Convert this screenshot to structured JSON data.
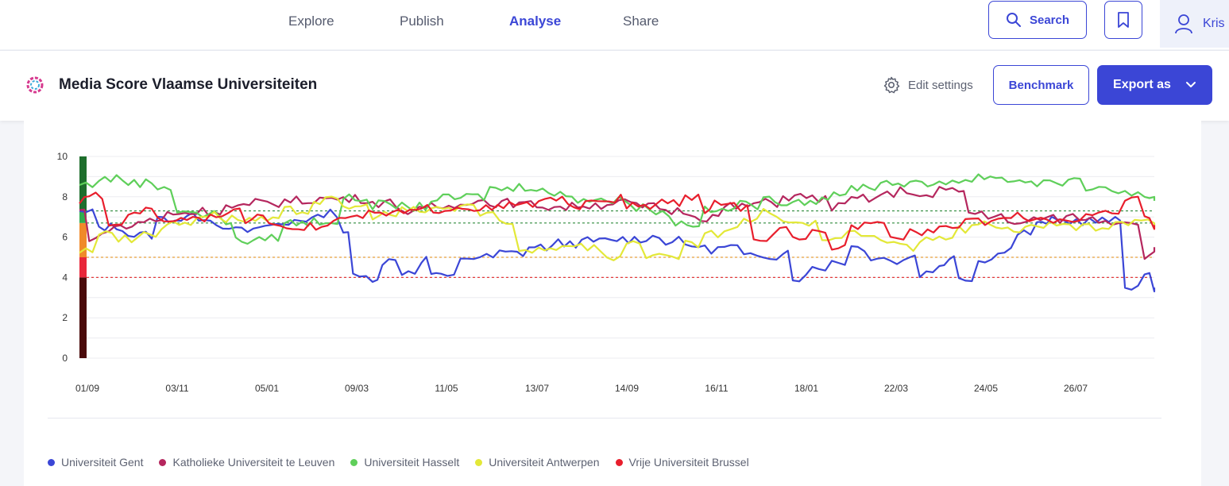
{
  "nav": {
    "items": [
      {
        "label": "Explore",
        "active": false
      },
      {
        "label": "Publish",
        "active": false
      },
      {
        "label": "Analyse",
        "active": true
      },
      {
        "label": "Share",
        "active": false
      }
    ],
    "search_label": "Search",
    "user_name": "Kris"
  },
  "header": {
    "title": "Media Score Vlaamse Universiteiten",
    "edit_settings_label": "Edit settings",
    "benchmark_label": "Benchmark",
    "export_label": "Export as"
  },
  "colors": {
    "accent": "#3b46d6"
  },
  "chart_data": {
    "type": "line",
    "ylim": [
      0,
      10
    ],
    "yticks": [
      0,
      2,
      4,
      6,
      8,
      10
    ],
    "x_tick_labels": [
      "01/09",
      "03/11",
      "05/01",
      "09/03",
      "11/05",
      "13/07",
      "14/09",
      "16/11",
      "18/01",
      "22/03",
      "24/05",
      "26/07"
    ],
    "reference_lines": [
      {
        "value": 7.3,
        "color": "#2e8b3d"
      },
      {
        "value": 6.7,
        "color": "#2e8b3d"
      },
      {
        "value": 5.0,
        "color": "#e8a13c"
      },
      {
        "value": 4.0,
        "color": "#e33b3b"
      }
    ],
    "score_bands": [
      {
        "from": 0,
        "to": 4,
        "color": "#4a0a0a"
      },
      {
        "from": 4,
        "to": 5,
        "color": "#e8273a"
      },
      {
        "from": 5,
        "to": 6.7,
        "color": "#f08a2a"
      },
      {
        "from": 6.7,
        "to": 7.3,
        "color": "#2fae4f"
      },
      {
        "from": 7.3,
        "to": 10,
        "color": "#1e6e2c"
      }
    ],
    "series": [
      {
        "name": "Universiteit Gent",
        "color": "#3b46d6",
        "points": [
          [
            0,
            7.2
          ],
          [
            0.02,
            6.5
          ],
          [
            0.05,
            6.1
          ],
          [
            0.08,
            6.9
          ],
          [
            0.11,
            7.0
          ],
          [
            0.14,
            6.6
          ],
          [
            0.16,
            6.3
          ],
          [
            0.19,
            6.6
          ],
          [
            0.22,
            6.9
          ],
          [
            0.25,
            7.2
          ],
          [
            0.27,
            6.3
          ],
          [
            0.28,
            4.0
          ],
          [
            0.3,
            4.0
          ],
          [
            0.31,
            4.8
          ],
          [
            0.33,
            4.3
          ],
          [
            0.35,
            4.9
          ],
          [
            0.36,
            4.2
          ],
          [
            0.37,
            4.0
          ],
          [
            0.39,
            5.0
          ],
          [
            0.41,
            5.0
          ],
          [
            0.43,
            5.2
          ],
          [
            0.46,
            5.5
          ],
          [
            0.49,
            5.7
          ],
          [
            0.52,
            5.8
          ],
          [
            0.55,
            5.9
          ],
          [
            0.58,
            6.0
          ],
          [
            0.6,
            5.8
          ],
          [
            0.62,
            5.6
          ],
          [
            0.64,
            5.4
          ],
          [
            0.66,
            5.5
          ],
          [
            0.68,
            5.0
          ],
          [
            0.7,
            5.1
          ],
          [
            0.72,
            5.3
          ],
          [
            0.73,
            4.0
          ],
          [
            0.75,
            4.5
          ],
          [
            0.77,
            4.8
          ],
          [
            0.79,
            5.5
          ],
          [
            0.81,
            5.0
          ],
          [
            0.83,
            4.8
          ],
          [
            0.85,
            5.1
          ],
          [
            0.86,
            4.2
          ],
          [
            0.88,
            4.7
          ],
          [
            0.89,
            5.1
          ],
          [
            0.9,
            4.0
          ],
          [
            0.92,
            4.8
          ],
          [
            0.94,
            5.4
          ],
          [
            0.96,
            6.2
          ],
          [
            0.98,
            6.6
          ],
          [
            0.99,
            6.8
          ],
          [
            1.0,
            6.8
          ],
          [
            1.02,
            6.8
          ],
          [
            1.04,
            6.8
          ],
          [
            1.06,
            6.8
          ],
          [
            1.07,
            3.6
          ],
          [
            1.09,
            4.0
          ],
          [
            1.1,
            3.5
          ]
        ]
      },
      {
        "name": "Katholieke Universiteit te Leuven",
        "color": "#b5275e",
        "points": [
          [
            0,
            7.3
          ],
          [
            0.01,
            6.0
          ],
          [
            0.03,
            6.5
          ],
          [
            0.06,
            6.8
          ],
          [
            0.09,
            7.2
          ],
          [
            0.12,
            7.3
          ],
          [
            0.15,
            7.5
          ],
          [
            0.18,
            7.7
          ],
          [
            0.21,
            7.8
          ],
          [
            0.24,
            7.9
          ],
          [
            0.27,
            7.9
          ],
          [
            0.3,
            7.7
          ],
          [
            0.33,
            7.3
          ],
          [
            0.36,
            7.5
          ],
          [
            0.39,
            7.8
          ],
          [
            0.42,
            7.7
          ],
          [
            0.45,
            7.6
          ],
          [
            0.48,
            7.5
          ],
          [
            0.51,
            7.6
          ],
          [
            0.54,
            7.7
          ],
          [
            0.57,
            7.5
          ],
          [
            0.6,
            7.3
          ],
          [
            0.63,
            7.0
          ],
          [
            0.66,
            7.5
          ],
          [
            0.69,
            7.7
          ],
          [
            0.72,
            8.0
          ],
          [
            0.75,
            7.9
          ],
          [
            0.77,
            7.5
          ],
          [
            0.79,
            7.9
          ],
          [
            0.82,
            8.1
          ],
          [
            0.84,
            8.3
          ],
          [
            0.86,
            8.0
          ],
          [
            0.88,
            8.3
          ],
          [
            0.9,
            8.3
          ],
          [
            0.91,
            7.2
          ],
          [
            0.93,
            7.1
          ],
          [
            0.95,
            6.6
          ],
          [
            0.97,
            6.9
          ],
          [
            0.99,
            6.9
          ],
          [
            1.01,
            7.0
          ],
          [
            1.03,
            6.9
          ],
          [
            1.05,
            6.8
          ],
          [
            1.07,
            6.8
          ],
          [
            1.09,
            5.0
          ],
          [
            1.1,
            5.5
          ]
        ]
      },
      {
        "name": "Universiteit Hasselt",
        "color": "#5fcf5a",
        "points": [
          [
            0,
            8.6
          ],
          [
            0.02,
            8.9
          ],
          [
            0.05,
            8.7
          ],
          [
            0.08,
            8.5
          ],
          [
            0.1,
            7.3
          ],
          [
            0.12,
            7.1
          ],
          [
            0.15,
            6.8
          ],
          [
            0.16,
            5.8
          ],
          [
            0.19,
            6.0
          ],
          [
            0.21,
            6.7
          ],
          [
            0.24,
            6.8
          ],
          [
            0.27,
            7.9
          ],
          [
            0.3,
            7.6
          ],
          [
            0.33,
            7.5
          ],
          [
            0.36,
            7.9
          ],
          [
            0.39,
            8.0
          ],
          [
            0.42,
            8.4
          ],
          [
            0.45,
            8.5
          ],
          [
            0.48,
            8.1
          ],
          [
            0.51,
            7.9
          ],
          [
            0.54,
            7.8
          ],
          [
            0.57,
            7.5
          ],
          [
            0.59,
            7.2
          ],
          [
            0.61,
            6.7
          ],
          [
            0.64,
            7.3
          ],
          [
            0.67,
            7.6
          ],
          [
            0.7,
            7.8
          ],
          [
            0.73,
            7.8
          ],
          [
            0.76,
            8.0
          ],
          [
            0.79,
            8.5
          ],
          [
            0.82,
            8.7
          ],
          [
            0.85,
            8.6
          ],
          [
            0.88,
            8.8
          ],
          [
            0.9,
            8.8
          ],
          [
            0.92,
            9.0
          ],
          [
            0.95,
            8.8
          ],
          [
            0.98,
            8.7
          ],
          [
            1.0,
            8.7
          ],
          [
            1.03,
            8.5
          ],
          [
            1.05,
            8.3
          ],
          [
            1.07,
            8.2
          ],
          [
            1.09,
            7.8
          ],
          [
            1.1,
            7.8
          ]
        ]
      },
      {
        "name": "Universiteit Antwerpen",
        "color": "#e3e838",
        "points": [
          [
            0,
            5.3
          ],
          [
            0.02,
            6.3
          ],
          [
            0.04,
            5.9
          ],
          [
            0.06,
            6.2
          ],
          [
            0.09,
            6.7
          ],
          [
            0.12,
            7.1
          ],
          [
            0.15,
            6.9
          ],
          [
            0.18,
            6.8
          ],
          [
            0.21,
            7.3
          ],
          [
            0.24,
            7.8
          ],
          [
            0.27,
            7.5
          ],
          [
            0.3,
            7.1
          ],
          [
            0.33,
            7.3
          ],
          [
            0.36,
            7.4
          ],
          [
            0.39,
            7.6
          ],
          [
            0.41,
            7.1
          ],
          [
            0.43,
            6.6
          ],
          [
            0.45,
            5.3
          ],
          [
            0.47,
            5.5
          ],
          [
            0.5,
            5.7
          ],
          [
            0.52,
            5.5
          ],
          [
            0.54,
            4.9
          ],
          [
            0.56,
            5.8
          ],
          [
            0.58,
            5.1
          ],
          [
            0.6,
            4.9
          ],
          [
            0.62,
            5.6
          ],
          [
            0.64,
            6.1
          ],
          [
            0.66,
            6.3
          ],
          [
            0.68,
            6.8
          ],
          [
            0.7,
            7.2
          ],
          [
            0.72,
            6.8
          ],
          [
            0.74,
            6.6
          ],
          [
            0.76,
            6.0
          ],
          [
            0.78,
            6.1
          ],
          [
            0.8,
            6.2
          ],
          [
            0.82,
            5.8
          ],
          [
            0.84,
            5.5
          ],
          [
            0.86,
            5.8
          ],
          [
            0.88,
            6.0
          ],
          [
            0.9,
            6.4
          ],
          [
            0.92,
            6.6
          ],
          [
            0.95,
            6.4
          ],
          [
            0.98,
            6.6
          ],
          [
            1.0,
            6.7
          ],
          [
            1.02,
            6.5
          ],
          [
            1.04,
            6.3
          ],
          [
            1.06,
            6.6
          ],
          [
            1.08,
            6.9
          ],
          [
            1.1,
            6.6
          ]
        ]
      },
      {
        "name": "Vrije Universiteit Brussel",
        "color": "#e81e2c",
        "points": [
          [
            0,
            7.8
          ],
          [
            0.01,
            8.0
          ],
          [
            0.03,
            6.6
          ],
          [
            0.05,
            7.3
          ],
          [
            0.08,
            6.9
          ],
          [
            0.11,
            7.0
          ],
          [
            0.14,
            7.2
          ],
          [
            0.17,
            6.9
          ],
          [
            0.2,
            6.6
          ],
          [
            0.23,
            6.5
          ],
          [
            0.26,
            6.9
          ],
          [
            0.29,
            7.1
          ],
          [
            0.32,
            7.2
          ],
          [
            0.35,
            7.4
          ],
          [
            0.38,
            7.5
          ],
          [
            0.41,
            7.4
          ],
          [
            0.44,
            7.6
          ],
          [
            0.47,
            7.8
          ],
          [
            0.5,
            7.6
          ],
          [
            0.53,
            7.9
          ],
          [
            0.56,
            7.5
          ],
          [
            0.59,
            7.7
          ],
          [
            0.62,
            7.9
          ],
          [
            0.64,
            7.4
          ],
          [
            0.65,
            7.7
          ],
          [
            0.67,
            7.5
          ],
          [
            0.69,
            5.7
          ],
          [
            0.71,
            6.3
          ],
          [
            0.73,
            5.8
          ],
          [
            0.75,
            6.2
          ],
          [
            0.77,
            5.5
          ],
          [
            0.79,
            6.6
          ],
          [
            0.81,
            6.9
          ],
          [
            0.83,
            6.1
          ],
          [
            0.85,
            6.3
          ],
          [
            0.88,
            6.5
          ],
          [
            0.9,
            6.7
          ],
          [
            0.92,
            6.8
          ],
          [
            0.94,
            7.0
          ],
          [
            0.96,
            7.0
          ],
          [
            0.99,
            6.7
          ],
          [
            1.01,
            6.9
          ],
          [
            1.03,
            7.0
          ],
          [
            1.05,
            7.2
          ],
          [
            1.07,
            7.8
          ],
          [
            1.09,
            7.0
          ],
          [
            1.1,
            6.6
          ]
        ]
      }
    ]
  }
}
